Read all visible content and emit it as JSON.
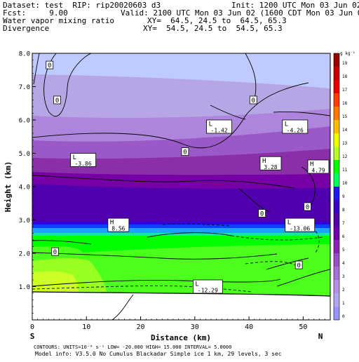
{
  "header": {
    "dataset": "Dataset: test  RIP: rip20020603 d3",
    "init": "Init: 1200 UTC Mon 03 Jun 02",
    "fcst": "Fcst:     9.00",
    "valid": "Valid: 2100 UTC Mon 03 Jun 02 (1600 CDT Mon 03 Jun 02)",
    "field1": "Water vapor mixing ratio",
    "xy1": "XY=  64.5, 24.5 to  64.5, 65.3",
    "field2": "Divergence",
    "xy2": "XY=  54.5, 24.5 to  54.5, 65.3"
  },
  "footer": {
    "contours": "CONTOURS:  UNITS=10⁻⁶ s⁻¹   LOW= -20.000      HIGH=  15.000      INTERVAL=   5.0000",
    "model": "Model info: V3.5.0 No Cumulus Blackadar  Simple ice   1 km,  29 levels,   3 sec"
  },
  "colors": {
    "plot_bg": "#ffffff",
    "bands": [
      "#bfcbff",
      "#b7a6e6",
      "#ae85dd",
      "#9a59c7",
      "#8a2fa8",
      "#7600a6",
      "#5100b0",
      "#3300e0",
      "#1040ff",
      "#1aa4ff",
      "#13e6a6",
      "#00ff00",
      "#4cff1c",
      "#99ff20",
      "#ccff26"
    ]
  },
  "chart_data": {
    "type": "contour",
    "xlabel": "Distance (km)",
    "ylabel": "Height (km)",
    "x_ticks": [
      0,
      10,
      20,
      30,
      40,
      50
    ],
    "y_ticks": [
      1.0,
      2.0,
      3.0,
      4.0,
      5.0,
      6.0,
      7.0,
      8.0
    ],
    "x_range": [
      0,
      55
    ],
    "y_range": [
      0,
      8
    ],
    "left_end": "S",
    "right_end": "N",
    "colorbar": {
      "unit_label": "g kg⁻¹",
      "levels": [
        0,
        1,
        2,
        3,
        4,
        5,
        6,
        7,
        8,
        9,
        10,
        11,
        12,
        13,
        14,
        15,
        16,
        17,
        18,
        19
      ],
      "colors": [
        "#9b93ff",
        "#b1a4f0",
        "#b88fe6",
        "#a56ed8",
        "#9a4ec4",
        "#8823b3",
        "#7000a9",
        "#5200aa",
        "#3800c2",
        "#2016ee",
        "#00fe62",
        "#00fd00",
        "#b7ff2b",
        "#eeff00",
        "#ffbf00",
        "#ff7800",
        "#ff3c00",
        "#e80000",
        "#c40000",
        "#990000"
      ]
    },
    "annotations": [
      {
        "text": "0",
        "x": 3.2,
        "y": 7.65
      },
      {
        "text": "0",
        "x": 4.6,
        "y": 6.6
      },
      {
        "text": "0",
        "x": 40.8,
        "y": 6.6
      },
      {
        "text": "L",
        "value": "-1.42",
        "x": 34.5,
        "y": 5.8
      },
      {
        "text": "L",
        "value": "-4.26",
        "x": 48.5,
        "y": 5.8
      },
      {
        "text": "L",
        "value": "-3.86",
        "x": 9.4,
        "y": 4.8
      },
      {
        "text": "0",
        "x": 28.2,
        "y": 5.05
      },
      {
        "text": "H",
        "value": "3.28",
        "x": 44.0,
        "y": 4.7
      },
      {
        "text": "H",
        "value": "4.79",
        "x": 52.8,
        "y": 4.6
      },
      {
        "text": "0",
        "x": 42.4,
        "y": 3.2
      },
      {
        "text": "0",
        "x": 50.8,
        "y": 3.4
      },
      {
        "text": "H",
        "value": "8.56",
        "x": 15.9,
        "y": 2.85
      },
      {
        "text": "L",
        "value": "-13.06",
        "x": 49.4,
        "y": 2.85
      },
      {
        "text": "0",
        "x": 4.2,
        "y": 2.05
      },
      {
        "text": "0",
        "x": 49.2,
        "y": 1.65
      },
      {
        "text": "L",
        "value": "-12.29",
        "x": 32.4,
        "y": 1.0
      }
    ]
  }
}
